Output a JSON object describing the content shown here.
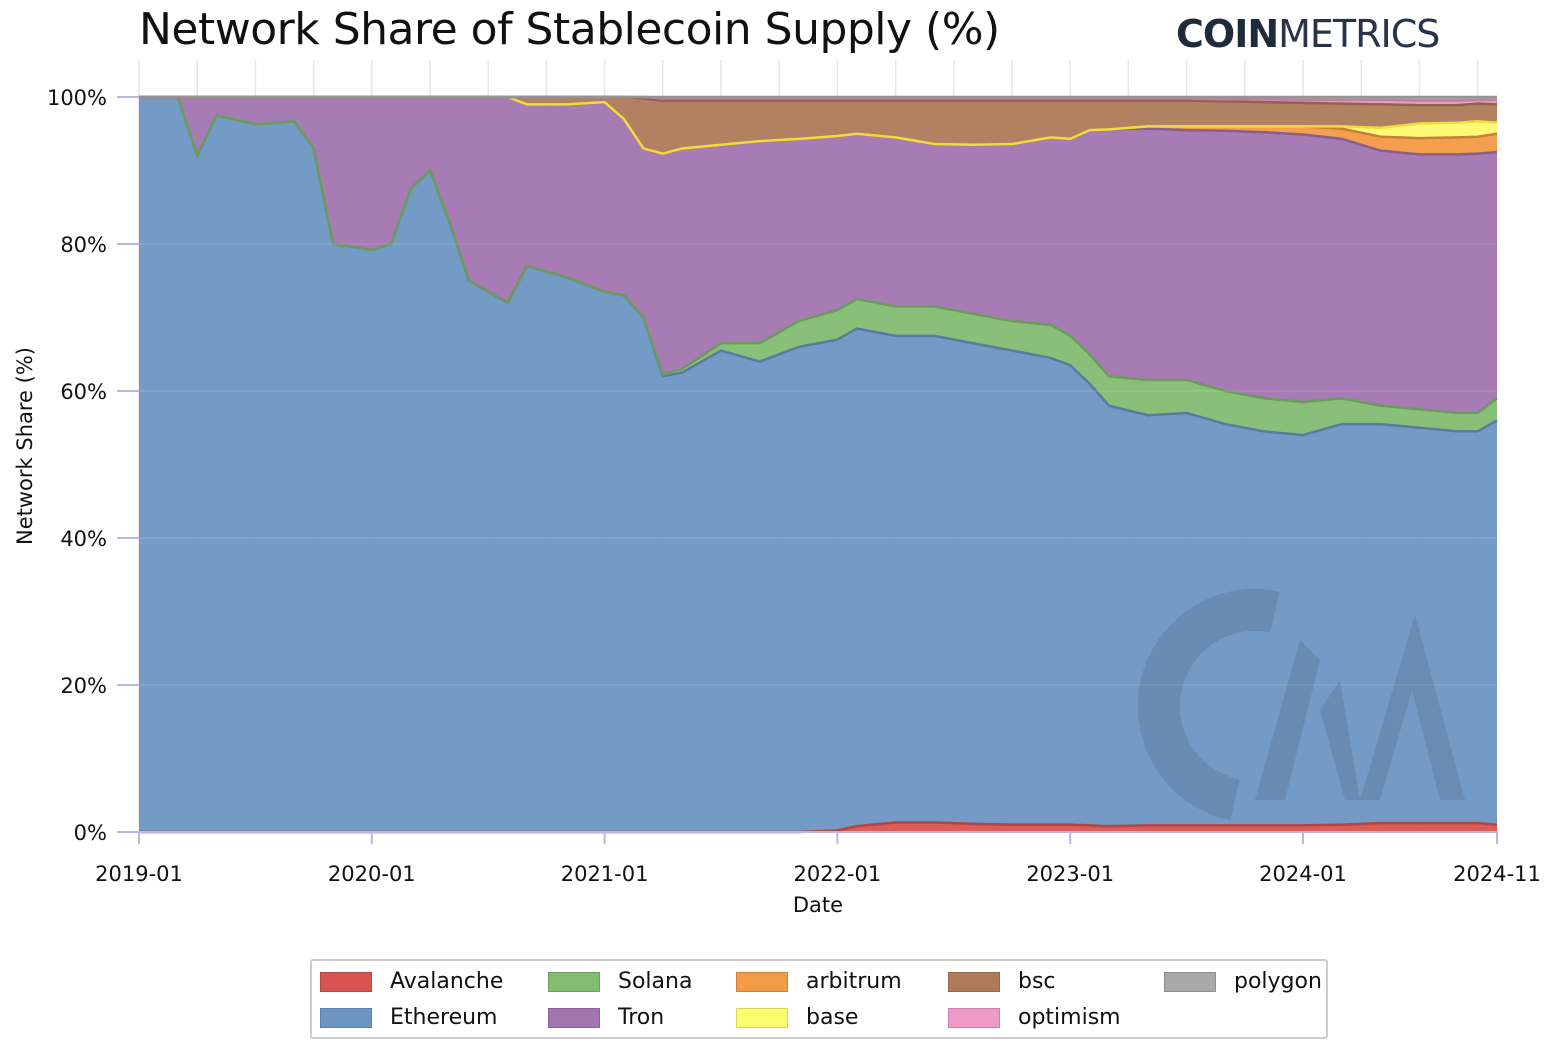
{
  "header": {
    "title": "Network Share of Stablecoin Supply (%)",
    "logo_bold": "COIN",
    "logo_light": "METRICS"
  },
  "chart_data": {
    "type": "area",
    "stacked": true,
    "title": "Network Share of Stablecoin Supply (%)",
    "xlabel": "Date",
    "ylabel": "Network Share (%)",
    "ylim": [
      0,
      100
    ],
    "yticks": [
      "0%",
      "20%",
      "40%",
      "60%",
      "80%",
      "100%"
    ],
    "xticks": [
      "2019-01",
      "2020-01",
      "2021-01",
      "2022-01",
      "2023-01",
      "2024-01",
      "2024-11"
    ],
    "grid": true,
    "legend_position": "bottom",
    "x": [
      "2019-01",
      "2019-03",
      "2019-04",
      "2019-05",
      "2019-07",
      "2019-09",
      "2019-10",
      "2019-11",
      "2020-01",
      "2020-02",
      "2020-03",
      "2020-04",
      "2020-05",
      "2020-06",
      "2020-08",
      "2020-09",
      "2020-11",
      "2021-01",
      "2021-02",
      "2021-03",
      "2021-04",
      "2021-05",
      "2021-07",
      "2021-09",
      "2021-11",
      "2022-01",
      "2022-02",
      "2022-04",
      "2022-06",
      "2022-08",
      "2022-10",
      "2022-12",
      "2023-01",
      "2023-02",
      "2023-03",
      "2023-05",
      "2023-07",
      "2023-09",
      "2023-11",
      "2024-01",
      "2024-03",
      "2024-05",
      "2024-07",
      "2024-09",
      "2024-10",
      "2024-11"
    ],
    "series": [
      {
        "name": "Avalanche",
        "color": "#d9534f",
        "values": [
          0,
          0,
          0,
          0,
          0,
          0,
          0,
          0,
          0,
          0,
          0,
          0,
          0,
          0,
          0,
          0,
          0,
          0,
          0,
          0,
          0,
          0,
          0,
          0,
          0,
          0.2,
          0.8,
          1.3,
          1.3,
          1.1,
          1.0,
          1.0,
          1.0,
          0.9,
          0.8,
          0.9,
          0.9,
          0.9,
          0.9,
          0.9,
          1.0,
          1.2,
          1.2,
          1.2,
          1.2,
          1.0
        ]
      },
      {
        "name": "Ethereum",
        "color": "#6b96c2",
        "values": [
          100,
          100,
          92,
          97.5,
          96.3,
          96.7,
          93,
          80,
          79.2,
          80,
          87.5,
          90,
          83,
          75,
          72,
          77,
          75.5,
          73.5,
          73,
          70,
          62,
          62.5,
          65.5,
          64,
          66,
          66.8,
          67.7,
          66.2,
          66.2,
          65.4,
          64.5,
          63.5,
          62.5,
          60.1,
          57.2,
          55.8,
          56.1,
          54.6,
          53.6,
          53.1,
          54.5,
          54.3,
          53.8,
          53.3,
          53.3,
          55
        ]
      },
      {
        "name": "Solana",
        "color": "#83bd72",
        "values": [
          0,
          0,
          0,
          0,
          0,
          0,
          0,
          0,
          0,
          0,
          0,
          0,
          0,
          0,
          0,
          0,
          0,
          0,
          0,
          0,
          0.3,
          0.5,
          1,
          2.5,
          3.5,
          4,
          4,
          4,
          4,
          4,
          4,
          4.5,
          4,
          4,
          4,
          4.8,
          4.5,
          4.5,
          4.5,
          4.5,
          3.5,
          2.5,
          2.5,
          2.5,
          2.5,
          3
        ]
      },
      {
        "name": "Tron",
        "color": "#a274b0",
        "values": [
          0,
          0,
          8,
          2.5,
          3.7,
          3.3,
          7,
          20,
          20.8,
          20,
          12.5,
          10,
          17,
          25,
          28,
          22,
          23.5,
          25.8,
          24,
          23,
          30,
          30,
          27,
          27.5,
          24.8,
          23.7,
          22.5,
          23,
          22.1,
          23,
          24.1,
          25.5,
          26.8,
          30.5,
          33.6,
          34.2,
          34,
          35.4,
          36.2,
          36.4,
          35.3,
          34.7,
          34.7,
          35.2,
          35.3,
          33.5
        ]
      },
      {
        "name": "arbitrum",
        "color": "#f39a45",
        "values": [
          0,
          0,
          0,
          0,
          0,
          0,
          0,
          0,
          0,
          0,
          0,
          0,
          0,
          0,
          0,
          0,
          0,
          0,
          0,
          0,
          0,
          0,
          0,
          0,
          0,
          0,
          0,
          0,
          0,
          0,
          0,
          0,
          0,
          0,
          0,
          0.3,
          0.5,
          0.6,
          0.8,
          1.1,
          1.4,
          1.9,
          2.2,
          2.3,
          2.3,
          2.5
        ]
      },
      {
        "name": "base",
        "color": "#fdfb6e",
        "values": [
          0,
          0,
          0,
          0,
          0,
          0,
          0,
          0,
          0,
          0,
          0,
          0,
          0,
          0,
          0,
          0,
          0,
          0,
          0,
          0,
          0,
          0,
          0,
          0,
          0,
          0,
          0,
          0,
          0,
          0,
          0,
          0,
          0,
          0,
          0,
          0,
          0,
          0,
          0,
          0,
          0.3,
          1.2,
          2.0,
          2.0,
          2.1,
          1.5
        ]
      },
      {
        "name": "bsc",
        "color": "#ae7a58",
        "values": [
          0,
          0,
          0,
          0,
          0,
          0,
          0,
          0,
          0,
          0,
          0,
          0,
          0,
          0,
          0,
          1,
          1,
          0.7,
          3,
          6.8,
          7.2,
          6.5,
          6,
          5.5,
          5.2,
          4.8,
          4.5,
          5,
          5.9,
          6,
          5.9,
          5,
          5.2,
          4,
          3.9,
          3.5,
          3.5,
          3.4,
          3.3,
          3.2,
          3.1,
          3.2,
          2.5,
          2.4,
          2.4,
          2.5
        ]
      },
      {
        "name": "optimism",
        "color": "#ee9ac8",
        "values": [
          0,
          0,
          0,
          0,
          0,
          0,
          0,
          0,
          0,
          0,
          0,
          0,
          0,
          0,
          0,
          0,
          0,
          0,
          0,
          0.2,
          0.3,
          0.3,
          0.3,
          0.3,
          0.3,
          0.3,
          0.3,
          0.3,
          0.3,
          0.3,
          0.3,
          0.3,
          0.3,
          0.3,
          0.3,
          0.3,
          0.3,
          0.3,
          0.4,
          0.4,
          0.5,
          0.6,
          0.6,
          0.6,
          0.5,
          0.6
        ]
      },
      {
        "name": "polygon",
        "color": "#a8a8a8",
        "values": [
          0,
          0,
          0,
          0,
          0,
          0,
          0,
          0,
          0,
          0,
          0,
          0,
          0,
          0,
          0,
          0,
          0,
          0,
          0,
          0,
          0.2,
          0.2,
          0.2,
          0.2,
          0.2,
          0.2,
          0.2,
          0.2,
          0.2,
          0.2,
          0.2,
          0.2,
          0.2,
          0.2,
          0.2,
          0.2,
          0.2,
          0.3,
          0.3,
          0.4,
          0.4,
          0.4,
          0.5,
          0.5,
          0.4,
          0.4
        ]
      }
    ],
    "legend_order": [
      "Avalanche",
      "Solana",
      "arbitrum",
      "bsc",
      "polygon",
      "Ethereum",
      "Tron",
      "base",
      "optimism"
    ]
  }
}
